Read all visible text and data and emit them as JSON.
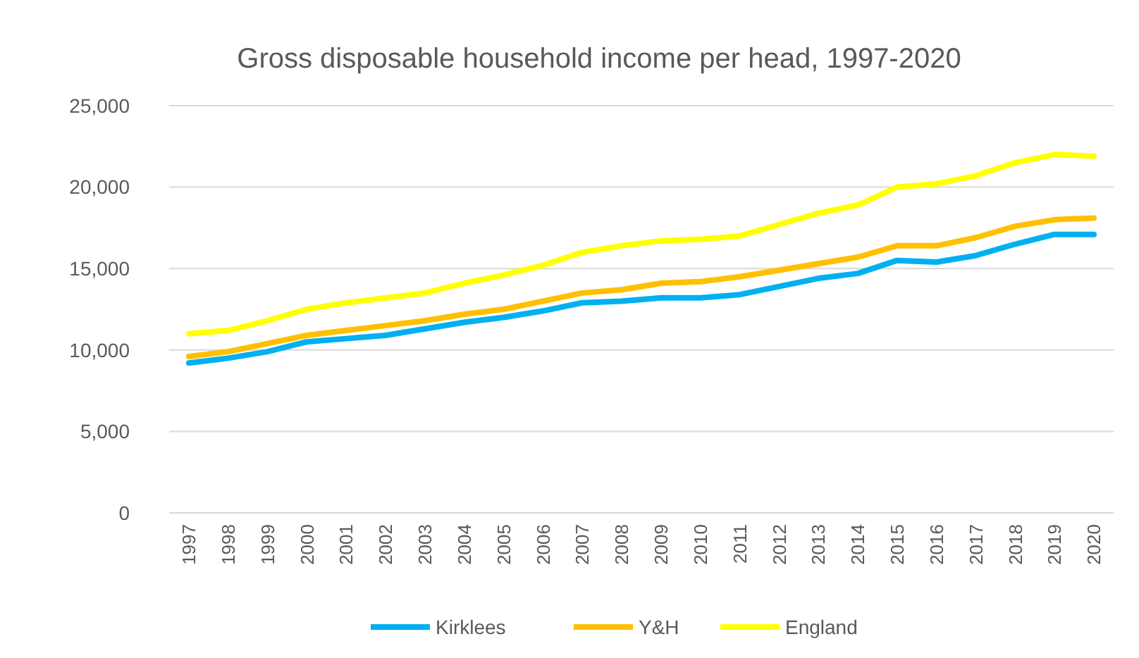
{
  "chart_data": {
    "type": "line",
    "title": "Gross disposable household income per head, 1997-2020",
    "categories": [
      "1997",
      "1998",
      "1999",
      "2000",
      "2001",
      "2002",
      "2003",
      "2004",
      "2005",
      "2006",
      "2007",
      "2008",
      "2009",
      "2010",
      "2011",
      "2012",
      "2013",
      "2014",
      "2015",
      "2016",
      "2017",
      "2018",
      "2019",
      "2020"
    ],
    "series": [
      {
        "name": "Kirklees",
        "color": "#00b0f0",
        "values": [
          9200,
          9500,
          9900,
          10500,
          10700,
          10900,
          11300,
          11700,
          12000,
          12400,
          12900,
          13000,
          13200,
          13200,
          13400,
          13900,
          14400,
          14700,
          15500,
          15400,
          15800,
          16500,
          17100,
          17100
        ]
      },
      {
        "name": "Y&H",
        "color": "#ffc000",
        "values": [
          9600,
          9900,
          10400,
          10900,
          11200,
          11500,
          11800,
          12200,
          12500,
          13000,
          13500,
          13700,
          14100,
          14200,
          14500,
          14900,
          15300,
          15700,
          16400,
          16400,
          16900,
          17600,
          18000,
          18100
        ]
      },
      {
        "name": "England",
        "color": "#ffff00",
        "values": [
          11000,
          11200,
          11800,
          12500,
          12900,
          13200,
          13500,
          14100,
          14600,
          15200,
          16000,
          16400,
          16700,
          16800,
          17000,
          17700,
          18400,
          18900,
          20000,
          20200,
          20700,
          21500,
          22000,
          21900
        ]
      }
    ],
    "ylim": [
      0,
      25000
    ],
    "yticks": [
      {
        "value": 0,
        "label": "0"
      },
      {
        "value": 5000,
        "label": "5,000"
      },
      {
        "value": 10000,
        "label": "10,000"
      },
      {
        "value": 15000,
        "label": "15,000"
      },
      {
        "value": 20000,
        "label": "20,000"
      },
      {
        "value": 25000,
        "label": "25,000"
      }
    ],
    "grid": "y",
    "legend": "bottom",
    "marker": "none",
    "line_style": "solid"
  }
}
